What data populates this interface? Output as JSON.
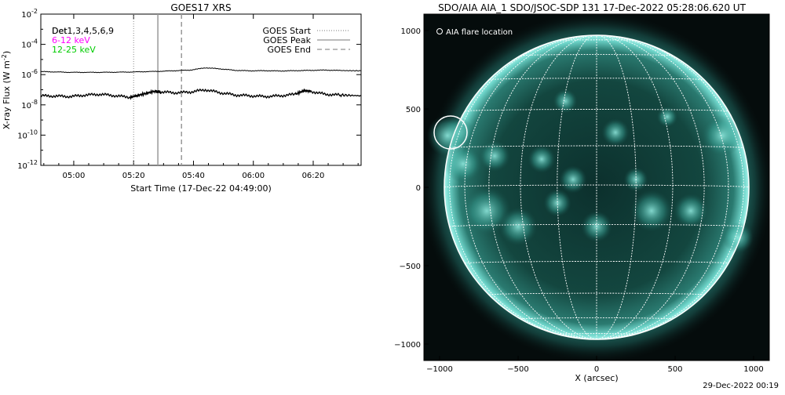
{
  "left_panel": {
    "title": "GOES17 XRS",
    "ylabel": "X-ray Flux (W m",
    "ylabel_sup": "-2",
    "ylabel_close": ")",
    "xlabel": "Start Time (17-Dec-22 04:49:00)",
    "detector_line": "Det",
    "detector_overlay": "Det1,3,4,5,6,9",
    "energy_bands": [
      {
        "label": "6-12 keV",
        "color": "#ff00ff"
      },
      {
        "label": "12-25 keV",
        "color": "#00cc00"
      }
    ],
    "legend": [
      {
        "label": "GOES Start",
        "style": "dotted"
      },
      {
        "label": "GOES Peak",
        "style": "solid"
      },
      {
        "label": "GOES End",
        "style": "dashed"
      }
    ]
  },
  "right_panel": {
    "title": "SDO/AIA AIA_1 SDO/JSOC-SDP 131 17-Dec-2022 05:28:06.620 UT",
    "legend_label": "AIA flare location",
    "xlabel": "X (arcsec)",
    "colors": {
      "disk": "#0f3c38",
      "limb": "#7fe6dc",
      "bright": "#c8fff6",
      "background": "#050c0c"
    }
  },
  "footer": {
    "timestamp": "29-Dec-2022 00:19"
  },
  "chart_data": [
    {
      "type": "line",
      "title": "GOES17 XRS",
      "xlabel": "Start Time (17-Dec-22 04:49:00)",
      "ylabel": "X-ray Flux (W m^-2)",
      "yscale": "log",
      "ylim": [
        1e-12,
        0.01
      ],
      "xlim_minutes_after_start": [
        0,
        107
      ],
      "x_ticks": [
        "05:00",
        "05:20",
        "05:40",
        "06:00",
        "06:20"
      ],
      "x_tick_minutes": [
        11,
        31,
        51,
        71,
        91
      ],
      "y_ticks": [
        "10^-2",
        "10^-4",
        "10^-6",
        "10^-8",
        "10^-10",
        "10^-12"
      ],
      "y_tick_exponents": [
        -2,
        -4,
        -6,
        -8,
        -10,
        -12
      ],
      "series": [
        {
          "name": "upper curve",
          "x_minutes": [
            0,
            10,
            20,
            30,
            40,
            50,
            55,
            60,
            65,
            70,
            75,
            80,
            85,
            90,
            95,
            100,
            107
          ],
          "log10_flux": [
            -5.8,
            -5.85,
            -5.85,
            -5.83,
            -5.78,
            -5.7,
            -5.55,
            -5.62,
            -5.72,
            -5.75,
            -5.74,
            -5.76,
            -5.74,
            -5.72,
            -5.7,
            -5.73,
            -5.75
          ]
        },
        {
          "name": "lower curve",
          "x_minutes": [
            0,
            5,
            10,
            15,
            20,
            25,
            30,
            32,
            35,
            38,
            40,
            45,
            50,
            55,
            60,
            65,
            70,
            75,
            80,
            85,
            88,
            90,
            95,
            100,
            107
          ],
          "log10_flux": [
            -7.4,
            -7.42,
            -7.45,
            -7.35,
            -7.3,
            -7.4,
            -7.5,
            -7.4,
            -7.25,
            -7.1,
            -7.15,
            -7.2,
            -7.15,
            -7.0,
            -7.2,
            -7.35,
            -7.4,
            -7.45,
            -7.4,
            -7.3,
            -7.05,
            -7.1,
            -7.3,
            -7.35,
            -7.4
          ]
        }
      ],
      "markers_minutes": {
        "GOES Start": 31.0,
        "GOES Peak": 39.1,
        "GOES End": 47.0
      }
    },
    {
      "type": "image",
      "title": "SDO/AIA AIA_1 SDO/JSOC-SDP 131 17-Dec-2022 05:28:06.620 UT",
      "xlabel": "X (arcsec)",
      "xlim": [
        -1100,
        1100
      ],
      "ylim": [
        -1100,
        1100
      ],
      "x_ticks": [
        -1000,
        -500,
        0,
        500,
        1000
      ],
      "y_ticks": [
        1000,
        500,
        0,
        -500,
        -1000
      ],
      "solar_radius_arcsec": 970,
      "flare_location_arcsec": {
        "x": -930,
        "y": 350
      },
      "flare_circle_radius_arcsec": 100
    }
  ]
}
